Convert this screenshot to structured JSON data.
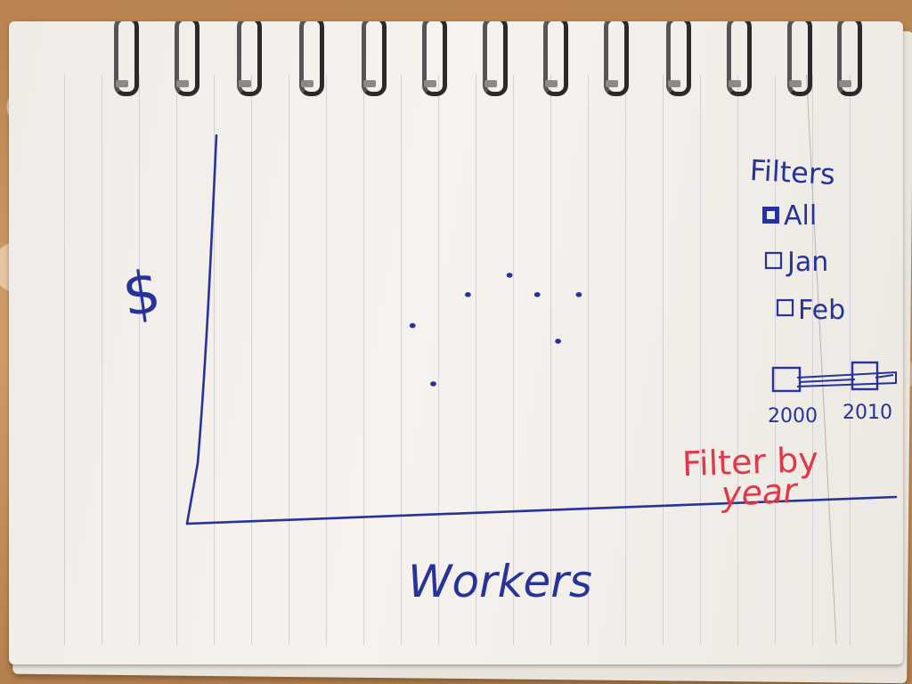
{
  "axes": {
    "y_label": "$",
    "x_label": "Workers"
  },
  "filters": {
    "title": "Filters",
    "options": [
      {
        "label": "All",
        "checked": true
      },
      {
        "label": "Jan",
        "checked": false
      },
      {
        "label": "Feb",
        "checked": false
      }
    ],
    "year_slider": {
      "min_label": "2000",
      "max_label": "2010"
    },
    "annotation_line1": "Filter by",
    "annotation_line2": "year"
  },
  "colors": {
    "ink": "#27329a",
    "red_ink": "#e03848",
    "paper": "#f3f0ec"
  },
  "chart_data": {
    "type": "scatter",
    "xlabel": "Workers",
    "ylabel": "$",
    "points": [
      {
        "x": 0.31,
        "y": 0.51
      },
      {
        "x": 0.34,
        "y": 0.36
      },
      {
        "x": 0.39,
        "y": 0.59
      },
      {
        "x": 0.45,
        "y": 0.64
      },
      {
        "x": 0.49,
        "y": 0.59
      },
      {
        "x": 0.52,
        "y": 0.47
      },
      {
        "x": 0.55,
        "y": 0.59
      }
    ],
    "xlim": [
      0,
      1
    ],
    "ylim": [
      0,
      1
    ],
    "grid": false
  }
}
